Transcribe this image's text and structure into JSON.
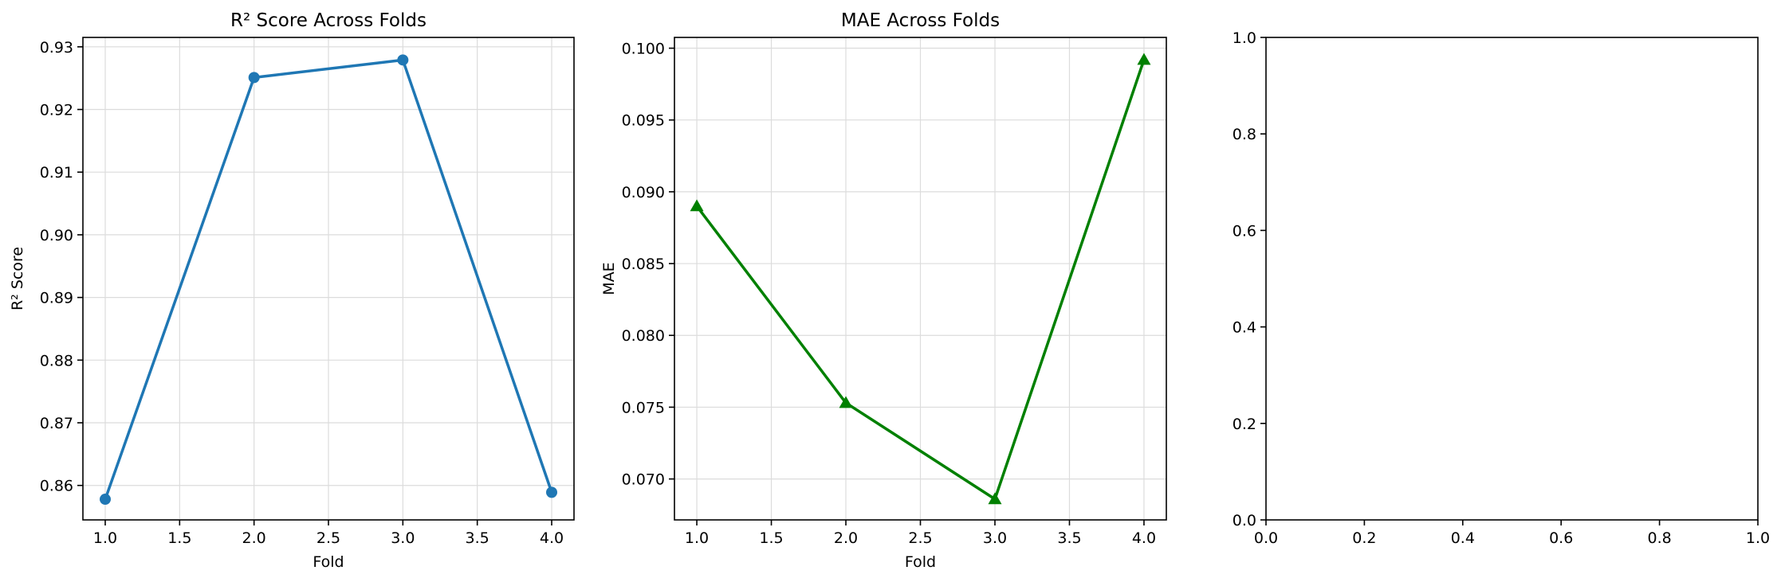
{
  "chart_data": [
    {
      "type": "line",
      "title": "R² Score Across Folds",
      "xlabel": "Fold",
      "ylabel": "R² Score",
      "xlim": [
        0.85,
        4.15
      ],
      "ylim": [
        0.8545,
        0.9315
      ],
      "xticks": [
        1.0,
        1.5,
        2.0,
        2.5,
        3.0,
        3.5,
        4.0
      ],
      "xtick_labels": [
        "1.0",
        "1.5",
        "2.0",
        "2.5",
        "3.0",
        "3.5",
        "4.0"
      ],
      "yticks": [
        0.86,
        0.87,
        0.88,
        0.89,
        0.9,
        0.91,
        0.92,
        0.93
      ],
      "ytick_labels": [
        "0.86",
        "0.87",
        "0.88",
        "0.89",
        "0.90",
        "0.91",
        "0.92",
        "0.93"
      ],
      "grid": true,
      "series": [
        {
          "x": [
            1,
            2,
            3,
            4
          ],
          "y": [
            0.8578,
            0.9251,
            0.9279,
            0.8589
          ],
          "color": "#1f77b4",
          "marker": "circle"
        }
      ]
    },
    {
      "type": "line",
      "title": "MAE Across Folds",
      "xlabel": "Fold",
      "ylabel": "MAE",
      "xlim": [
        0.85,
        4.15
      ],
      "ylim": [
        0.06715,
        0.10075
      ],
      "xticks": [
        1.0,
        1.5,
        2.0,
        2.5,
        3.0,
        3.5,
        4.0
      ],
      "xtick_labels": [
        "1.0",
        "1.5",
        "2.0",
        "2.5",
        "3.0",
        "3.5",
        "4.0"
      ],
      "yticks": [
        0.07,
        0.075,
        0.08,
        0.085,
        0.09,
        0.095,
        0.1
      ],
      "ytick_labels": [
        "0.070",
        "0.075",
        "0.080",
        "0.085",
        "0.090",
        "0.095",
        "0.100"
      ],
      "grid": true,
      "series": [
        {
          "x": [
            1,
            2,
            3,
            4
          ],
          "y": [
            0.089,
            0.0753,
            0.0686,
            0.0992
          ],
          "color": "#008000",
          "marker": "triangle"
        }
      ]
    },
    {
      "type": "line",
      "title": "",
      "xlabel": "",
      "ylabel": "",
      "xlim": [
        0.0,
        1.0
      ],
      "ylim": [
        0.0,
        1.0
      ],
      "xticks": [
        0.0,
        0.2,
        0.4,
        0.6,
        0.8,
        1.0
      ],
      "xtick_labels": [
        "0.0",
        "0.2",
        "0.4",
        "0.6",
        "0.8",
        "1.0"
      ],
      "yticks": [
        0.0,
        0.2,
        0.4,
        0.6,
        0.8,
        1.0
      ],
      "ytick_labels": [
        "0.0",
        "0.2",
        "0.4",
        "0.6",
        "0.8",
        "1.0"
      ],
      "grid": false,
      "series": []
    }
  ]
}
